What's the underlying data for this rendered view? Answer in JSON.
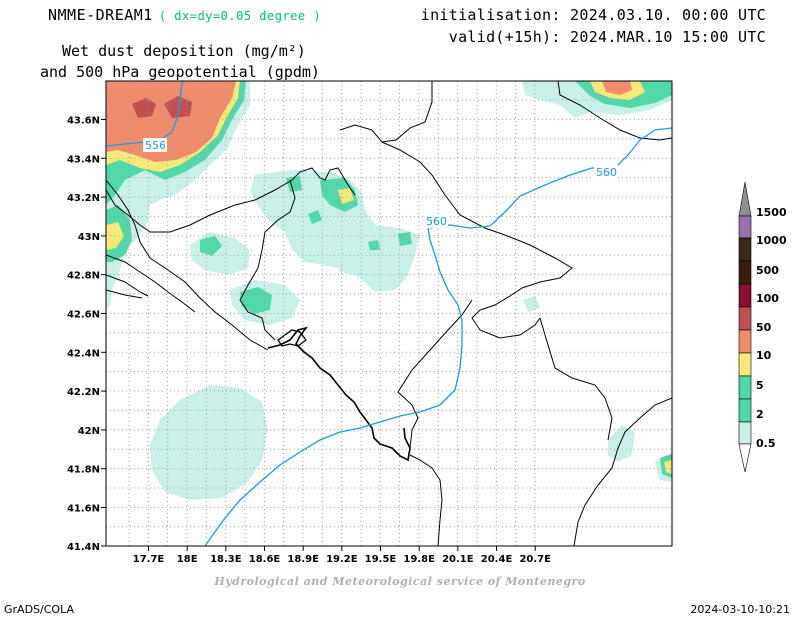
{
  "header": {
    "model": "NMME-DREAM1",
    "resolution": "( dx=dy=0.05 degree )",
    "field_line1": "Wet dust deposition (mg/m²)",
    "field_line2": "and 500 hPa geopotential (gpdm)",
    "initialisation": "initialisation: 2024.03.10. 00:00 UTC",
    "valid": "valid(+15h): 2024.MAR.10 15:00 UTC"
  },
  "footer": {
    "credit": "Hydrological and Meteorological service of Montenegro",
    "software": "GrADS/COLA",
    "timestamp": "2024-03-10-10:21"
  },
  "map": {
    "lon_labels": [
      "17.7E",
      "18E",
      "18.3E",
      "18.6E",
      "18.9E",
      "19.2E",
      "19.5E",
      "19.8E",
      "20.1E",
      "20.4E",
      "20.7E"
    ],
    "lat_labels": [
      "43.6N",
      "43.4N",
      "43.2N",
      "43N",
      "42.8N",
      "42.6N",
      "42.4N",
      "42.2N",
      "42N",
      "41.8N",
      "41.6N",
      "41.4N"
    ],
    "contour_labels": [
      "556",
      "560",
      "560"
    ]
  },
  "legend": {
    "levels": [
      "0.5",
      "2",
      "5",
      "10",
      "50",
      "100",
      "500",
      "1000",
      "1500"
    ],
    "colors": {
      "0.5": "#c8f0e8",
      "2": "#50d8a8",
      "5": "#f8e878",
      "10": "#f08c6c",
      "50": "#c05050",
      "100": "#8c0e30",
      "500": "#3c1c0c",
      "1000": "#3a2a1a",
      "1500": "#9a70b0",
      "over": "#909090"
    }
  },
  "colors": {
    "contour": "#1a9be6",
    "boundary": "#000000",
    "grid": "#a0a0a0"
  }
}
